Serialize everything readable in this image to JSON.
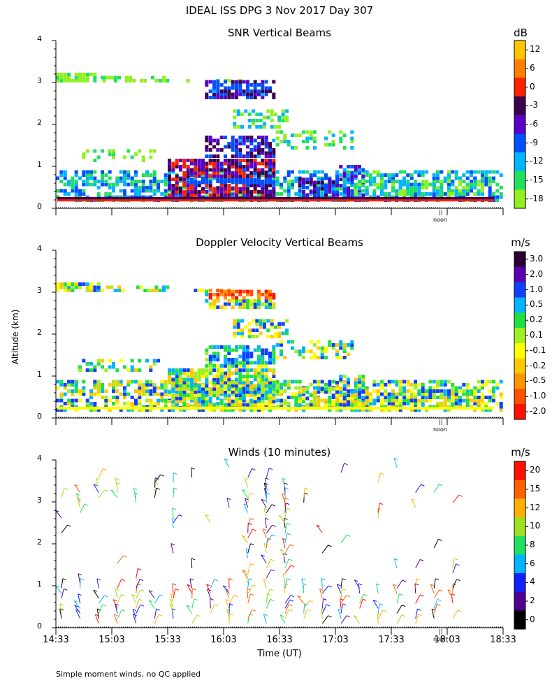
{
  "header": {
    "title": "IDEAL ISS DPG    3 Nov 2017 Day 307"
  },
  "footer": {
    "note": "Simple moment winds, no QC applied"
  },
  "axes": {
    "ylabel": "Altitude (km)",
    "xlabel": "Time (UT)",
    "yticks": [
      "0",
      "1",
      "2",
      "3",
      "4"
    ],
    "xticks": [
      "14:33",
      "15:03",
      "15:33",
      "16:03",
      "16:33",
      "17:03",
      "17:33",
      "18:03",
      "18:33"
    ],
    "noon_label": "noon",
    "noon_mark": "||"
  },
  "chart_data": [
    {
      "type": "heatmap",
      "title": "SNR Vertical Beams",
      "unit": "dB",
      "ylim": [
        0,
        4
      ],
      "xlim": [
        "14:33",
        "18:33"
      ],
      "colorbar_ticks": [
        "12",
        "6",
        "0",
        "-3",
        "-6",
        "-9",
        "-12",
        "-15",
        "-18"
      ],
      "colorbar_colors": [
        "#ffc400",
        "#ff8000",
        "#ff2000",
        "#3c0050",
        "#5a00c8",
        "#0050ff",
        "#00b4ff",
        "#20e060",
        "#90f020"
      ]
    },
    {
      "type": "heatmap",
      "title": "Doppler Velocity Vertical Beams",
      "unit": "m/s",
      "ylim": [
        0,
        4
      ],
      "xlim": [
        "14:33",
        "18:33"
      ],
      "colorbar_ticks": [
        "3.0",
        "2.0",
        "1.0",
        "0.5",
        "0.2",
        "0.1",
        "-0.1",
        "-0.2",
        "-0.5",
        "-1.0",
        "-2.0"
      ],
      "colorbar_colors": [
        "#2a0030",
        "#5a00b0",
        "#1040ff",
        "#00b4ff",
        "#20e040",
        "#a0f020",
        "#ffff00",
        "#ffc800",
        "#ff9600",
        "#ff5000",
        "#ff1000"
      ]
    },
    {
      "type": "scatter",
      "title": "Winds (10 minutes)",
      "unit": "m/s",
      "ylim": [
        0,
        4
      ],
      "xlim": [
        "14:33",
        "18:33"
      ],
      "colorbar_ticks": [
        "20",
        "15",
        "12",
        "10",
        "8",
        "6",
        "4",
        "2",
        "0"
      ],
      "colorbar_colors": [
        "#ff1000",
        "#ff6000",
        "#ffb000",
        "#a0e020",
        "#20e060",
        "#00b4ff",
        "#1020ff",
        "#500090",
        "#000000"
      ]
    }
  ],
  "colors": {
    "axis": "#000000",
    "background": "#ffffff"
  }
}
